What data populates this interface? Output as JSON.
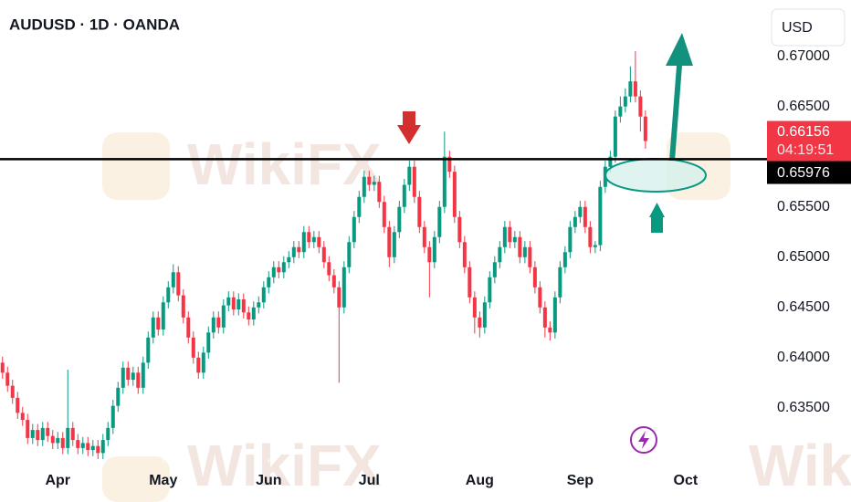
{
  "chart_data": {
    "type": "candlestick",
    "title": "AUDUSD · 1D · OANDA",
    "currency_button": "USD",
    "watermark": "WikiFX",
    "up_color": "#089981",
    "down_color": "#f23645",
    "open": [
      0.6395,
      0.6385,
      0.6372,
      0.636,
      0.6345,
      0.6338,
      0.632,
      0.6328,
      0.6318,
      0.633,
      0.6322,
      0.6315,
      0.632,
      0.631,
      0.633,
      0.6318,
      0.631,
      0.6315,
      0.6308,
      0.6312,
      0.6305,
      0.6318,
      0.633,
      0.6352,
      0.637,
      0.639,
      0.6378,
      0.6385,
      0.637,
      0.6395,
      0.642,
      0.644,
      0.6428,
      0.6455,
      0.647,
      0.6485,
      0.6462,
      0.644,
      0.642,
      0.64,
      0.6385,
      0.6405,
      0.6425,
      0.644,
      0.643,
      0.6452,
      0.646,
      0.6448,
      0.6458,
      0.6445,
      0.6438,
      0.645,
      0.6455,
      0.647,
      0.648,
      0.649,
      0.6485,
      0.6495,
      0.65,
      0.651,
      0.6505,
      0.6525,
      0.6515,
      0.652,
      0.651,
      0.6495,
      0.6482,
      0.647,
      0.645,
      0.649,
      0.6515,
      0.654,
      0.656,
      0.658,
      0.6572,
      0.6575,
      0.6555,
      0.653,
      0.65,
      0.6525,
      0.655,
      0.6572,
      0.659,
      0.656,
      0.653,
      0.651,
      0.6495,
      0.652,
      0.655,
      0.66,
      0.6585,
      0.654,
      0.6515,
      0.649,
      0.646,
      0.644,
      0.643,
      0.6455,
      0.648,
      0.6495,
      0.651,
      0.653,
      0.6515,
      0.652,
      0.65,
      0.651,
      0.649,
      0.647,
      0.645,
      0.643,
      0.6425,
      0.646,
      0.649,
      0.6505,
      0.653,
      0.654,
      0.655,
      0.653,
      0.651,
      0.6512,
      0.657,
      0.659,
      0.66,
      0.664,
      0.665,
      0.666,
      0.6675,
      0.666,
      0.664
    ],
    "high": [
      0.6401,
      0.6391,
      0.6378,
      0.6366,
      0.6351,
      0.6344,
      0.6334,
      0.6334,
      0.6336,
      0.6336,
      0.6328,
      0.6326,
      0.6326,
      0.6388,
      0.6336,
      0.6324,
      0.6321,
      0.6321,
      0.6318,
      0.6318,
      0.6324,
      0.6336,
      0.6358,
      0.6376,
      0.6396,
      0.6396,
      0.6391,
      0.6391,
      0.6401,
      0.6426,
      0.6446,
      0.6446,
      0.6461,
      0.6476,
      0.6493,
      0.6491,
      0.6468,
      0.6446,
      0.6426,
      0.6406,
      0.6411,
      0.6431,
      0.6446,
      0.6446,
      0.6458,
      0.6466,
      0.6466,
      0.6464,
      0.6464,
      0.6451,
      0.6456,
      0.6461,
      0.6476,
      0.6486,
      0.6496,
      0.6496,
      0.6501,
      0.6506,
      0.6516,
      0.6516,
      0.6531,
      0.6531,
      0.6526,
      0.6526,
      0.6516,
      0.6501,
      0.6488,
      0.6476,
      0.6496,
      0.6521,
      0.6546,
      0.6566,
      0.6586,
      0.6586,
      0.6581,
      0.6581,
      0.6561,
      0.6536,
      0.6531,
      0.6556,
      0.6578,
      0.6596,
      0.6596,
      0.6566,
      0.6536,
      0.6516,
      0.6526,
      0.6556,
      0.6625,
      0.6606,
      0.6591,
      0.6546,
      0.6521,
      0.6496,
      0.6466,
      0.6446,
      0.6461,
      0.6486,
      0.6501,
      0.6516,
      0.6536,
      0.6536,
      0.6526,
      0.6526,
      0.6516,
      0.6516,
      0.6496,
      0.6476,
      0.6456,
      0.6436,
      0.6466,
      0.6496,
      0.6511,
      0.6536,
      0.6546,
      0.6556,
      0.6556,
      0.6536,
      0.6516,
      0.6576,
      0.6596,
      0.6606,
      0.6646,
      0.666,
      0.6668,
      0.669,
      0.6705,
      0.6666,
      0.6646
    ],
    "low": [
      0.6379,
      0.6366,
      0.6354,
      0.6339,
      0.6332,
      0.6314,
      0.6314,
      0.6312,
      0.6312,
      0.6316,
      0.6309,
      0.6309,
      0.6304,
      0.6304,
      0.6312,
      0.6304,
      0.6304,
      0.6302,
      0.6302,
      0.6299,
      0.6299,
      0.6312,
      0.6324,
      0.6346,
      0.6364,
      0.6372,
      0.6372,
      0.6364,
      0.6364,
      0.6389,
      0.6414,
      0.6422,
      0.6422,
      0.6449,
      0.6464,
      0.6456,
      0.6434,
      0.6414,
      0.6394,
      0.6379,
      0.6379,
      0.6399,
      0.6419,
      0.6424,
      0.6424,
      0.6446,
      0.6442,
      0.6442,
      0.6439,
      0.6432,
      0.6432,
      0.6444,
      0.6449,
      0.6464,
      0.6474,
      0.6479,
      0.6479,
      0.6489,
      0.6494,
      0.6499,
      0.6499,
      0.6509,
      0.6509,
      0.6504,
      0.6489,
      0.6476,
      0.6464,
      0.6375,
      0.6444,
      0.6484,
      0.6509,
      0.6534,
      0.6554,
      0.6566,
      0.6566,
      0.6549,
      0.6524,
      0.649,
      0.6494,
      0.6519,
      0.6544,
      0.6566,
      0.6554,
      0.6524,
      0.6504,
      0.646,
      0.6489,
      0.6514,
      0.6544,
      0.6579,
      0.6534,
      0.6509,
      0.6484,
      0.6454,
      0.6424,
      0.642,
      0.6424,
      0.6449,
      0.6474,
      0.6489,
      0.6504,
      0.6509,
      0.6509,
      0.6494,
      0.6494,
      0.6484,
      0.6464,
      0.6444,
      0.642,
      0.6417,
      0.6419,
      0.6454,
      0.6484,
      0.6499,
      0.6524,
      0.6534,
      0.6524,
      0.6504,
      0.6504,
      0.6506,
      0.6564,
      0.6584,
      0.6594,
      0.6634,
      0.6644,
      0.6654,
      0.6654,
      0.6625,
      0.6608
    ],
    "close": [
      0.6385,
      0.6372,
      0.636,
      0.6345,
      0.6338,
      0.632,
      0.6328,
      0.6318,
      0.633,
      0.6322,
      0.6315,
      0.632,
      0.631,
      0.633,
      0.6318,
      0.631,
      0.6315,
      0.6308,
      0.6312,
      0.6305,
      0.6318,
      0.633,
      0.6352,
      0.637,
      0.639,
      0.6378,
      0.6385,
      0.637,
      0.6395,
      0.642,
      0.644,
      0.6428,
      0.6455,
      0.647,
      0.6485,
      0.6462,
      0.644,
      0.642,
      0.64,
      0.6385,
      0.6405,
      0.6425,
      0.644,
      0.643,
      0.6452,
      0.646,
      0.6448,
      0.6458,
      0.6445,
      0.6438,
      0.645,
      0.6455,
      0.647,
      0.648,
      0.649,
      0.6485,
      0.6495,
      0.65,
      0.651,
      0.6505,
      0.6525,
      0.6515,
      0.652,
      0.651,
      0.6495,
      0.6482,
      0.647,
      0.645,
      0.649,
      0.6515,
      0.654,
      0.656,
      0.658,
      0.6572,
      0.6575,
      0.6555,
      0.653,
      0.65,
      0.6525,
      0.655,
      0.6572,
      0.659,
      0.656,
      0.653,
      0.651,
      0.6495,
      0.652,
      0.655,
      0.66,
      0.6585,
      0.654,
      0.6515,
      0.649,
      0.646,
      0.644,
      0.643,
      0.6455,
      0.648,
      0.6495,
      0.651,
      0.653,
      0.6515,
      0.652,
      0.65,
      0.651,
      0.649,
      0.647,
      0.645,
      0.643,
      0.6425,
      0.646,
      0.649,
      0.6505,
      0.653,
      0.654,
      0.655,
      0.653,
      0.651,
      0.6512,
      0.657,
      0.659,
      0.66,
      0.664,
      0.665,
      0.666,
      0.6675,
      0.666,
      0.664,
      0.66156
    ],
    "countdown": "04:19:51",
    "horizontal_level": 0.65976,
    "xlim": [
      -0.5,
      152.2
    ],
    "xticks": [
      {
        "value": 11,
        "label": "Apr"
      },
      {
        "value": 32,
        "label": "May"
      },
      {
        "value": 53,
        "label": "Jun"
      },
      {
        "value": 73,
        "label": "Jul"
      },
      {
        "value": 95,
        "label": "Aug"
      },
      {
        "value": 115,
        "label": "Sep"
      },
      {
        "value": 136,
        "label": "Oct"
      }
    ],
    "ylim": [
      0.6299,
      0.6756
    ],
    "yticks": [
      {
        "value": 0.635,
        "label": "0.63500"
      },
      {
        "value": 0.64,
        "label": "0.64000"
      },
      {
        "value": 0.645,
        "label": "0.64500"
      },
      {
        "value": 0.65,
        "label": "0.65000"
      },
      {
        "value": 0.655,
        "label": "0.65500"
      },
      {
        "value": 0.665,
        "label": "0.66500"
      },
      {
        "value": 0.67,
        "label": "0.67000"
      }
    ]
  }
}
